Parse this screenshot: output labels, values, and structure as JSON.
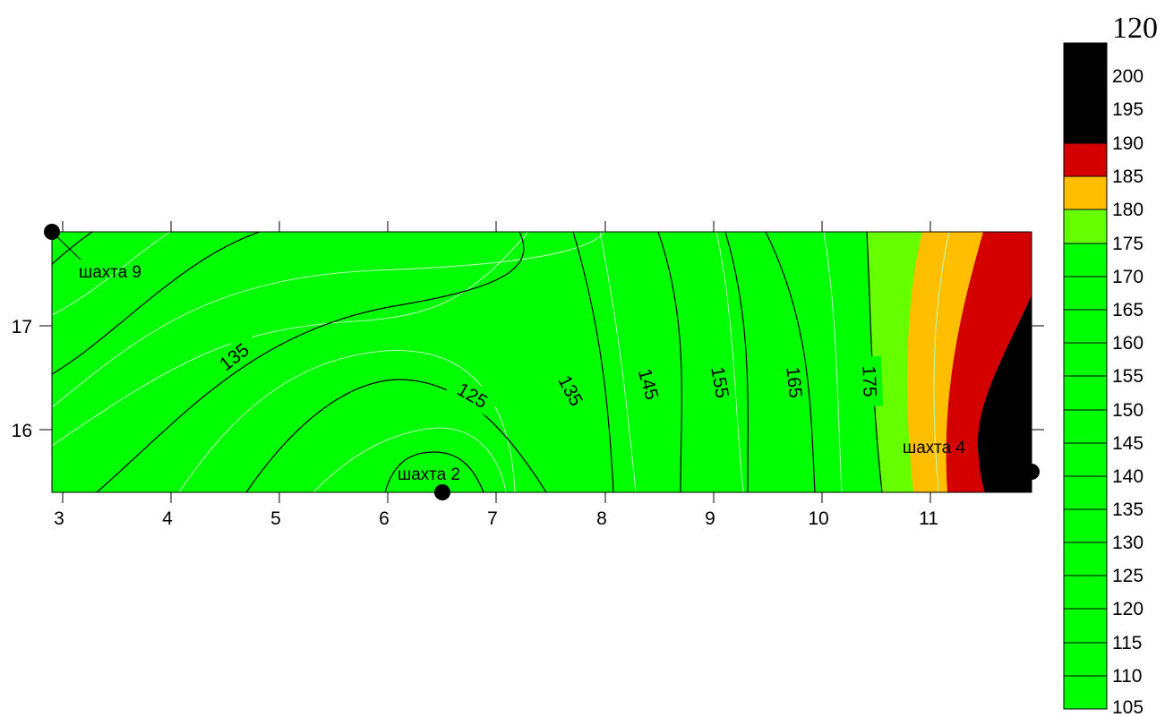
{
  "map": {
    "x_axis": {
      "ticks": [
        "3",
        "4",
        "5",
        "6",
        "7",
        "8",
        "9",
        "10",
        "11"
      ]
    },
    "y_axis": {
      "ticks": [
        "16",
        "17"
      ]
    },
    "contour_labels": [
      "135",
      "125",
      "135",
      "145",
      "155",
      "165",
      "175"
    ],
    "wells": [
      {
        "label": "шахта 9"
      },
      {
        "label": "шахта 2"
      },
      {
        "label": "шахта 4"
      }
    ],
    "colors": {
      "green": "#00ff00",
      "light_green": "#66ff00",
      "orange": "#ffbf00",
      "red": "#d40000",
      "black": "#000000",
      "minor_contour": "#b8ffb8",
      "major_contour": "#000000"
    }
  },
  "legend": {
    "title": "120",
    "labels": [
      "200",
      "195",
      "190",
      "185",
      "180",
      "175",
      "170",
      "165",
      "160",
      "155",
      "150",
      "145",
      "140",
      "135",
      "130",
      "125",
      "120",
      "115",
      "110",
      "105"
    ],
    "bands": [
      {
        "range": "190-205",
        "color": "#000000"
      },
      {
        "range": "185-190",
        "color": "#d40000"
      },
      {
        "range": "180-185",
        "color": "#ffbf00"
      },
      {
        "range": "175-180",
        "color": "#66ff00"
      },
      {
        "range": "105-175",
        "color": "#00ff00"
      }
    ]
  }
}
